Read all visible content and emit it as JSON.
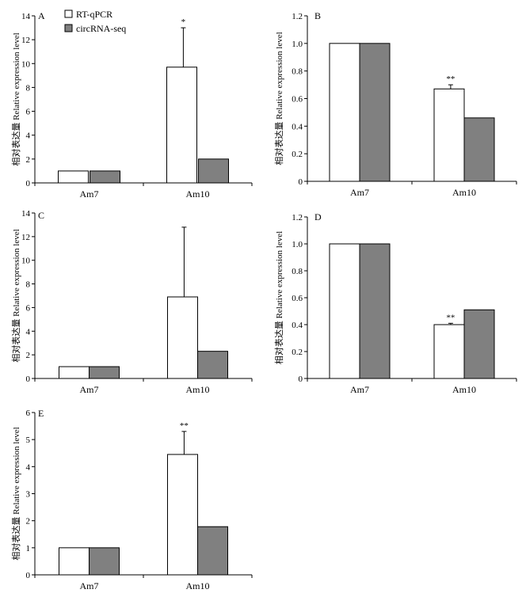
{
  "legend": [
    {
      "label": "RT-qPCR",
      "color": "#ffffff"
    },
    {
      "label": "circRNA-seq",
      "color": "#808080"
    }
  ],
  "chart_data": [
    {
      "type": "bar",
      "letter": "A",
      "ylabel": "相对表达量 Relative expression level",
      "categories": [
        "Am7",
        "Am10"
      ],
      "ylim": [
        0,
        14
      ],
      "yticks": [
        0,
        2,
        4,
        6,
        8,
        10,
        12,
        14
      ],
      "series": [
        {
          "name": "RT-qPCR",
          "values": [
            1.0,
            9.7
          ],
          "errors": [
            0,
            3.3
          ],
          "stars": [
            "",
            "*"
          ]
        },
        {
          "name": "circRNA-seq",
          "values": [
            1.0,
            2.0
          ]
        }
      ]
    },
    {
      "type": "bar",
      "letter": "B",
      "ylabel": "相对表达量 Relative expression level",
      "categories": [
        "Am7",
        "Am10"
      ],
      "ylim": [
        0,
        1.2
      ],
      "yticks": [
        "0",
        "0.2",
        "0.4",
        "0.6",
        "0.8",
        "1.0",
        "1.2"
      ],
      "series": [
        {
          "name": "RT-qPCR",
          "values": [
            1.0,
            0.67
          ],
          "errors": [
            0,
            0.03
          ],
          "stars": [
            "",
            "**"
          ]
        },
        {
          "name": "circRNA-seq",
          "values": [
            1.0,
            0.46
          ]
        }
      ]
    },
    {
      "type": "bar",
      "letter": "C",
      "ylabel": "相对表达量 Relative expression level",
      "categories": [
        "Am7",
        "Am10"
      ],
      "ylim": [
        0,
        14
      ],
      "yticks": [
        0,
        2,
        4,
        6,
        8,
        10,
        12,
        14
      ],
      "series": [
        {
          "name": "RT-qPCR",
          "values": [
            1.0,
            6.9
          ],
          "errors": [
            0,
            5.9
          ],
          "stars": [
            "",
            ""
          ]
        },
        {
          "name": "circRNA-seq",
          "values": [
            1.0,
            2.3
          ]
        }
      ]
    },
    {
      "type": "bar",
      "letter": "D",
      "ylabel": "相对表达量 Relative expression level",
      "categories": [
        "Am7",
        "Am10"
      ],
      "ylim": [
        0,
        1.2
      ],
      "yticks": [
        "0",
        "0.2",
        "0.4",
        "0.6",
        "0.8",
        "1.0",
        "1.2"
      ],
      "series": [
        {
          "name": "RT-qPCR",
          "values": [
            1.0,
            0.4
          ],
          "errors": [
            0,
            0.01
          ],
          "stars": [
            "",
            "**"
          ]
        },
        {
          "name": "circRNA-seq",
          "values": [
            1.0,
            0.51
          ]
        }
      ]
    },
    {
      "type": "bar",
      "letter": "E",
      "ylabel": "相对表达量 Relative expression level",
      "categories": [
        "Am7",
        "Am10"
      ],
      "ylim": [
        0,
        6
      ],
      "yticks": [
        0,
        1,
        2,
        3,
        4,
        5,
        6
      ],
      "series": [
        {
          "name": "RT-qPCR",
          "values": [
            1.0,
            4.45
          ],
          "errors": [
            0,
            0.85
          ],
          "stars": [
            "",
            "**"
          ]
        },
        {
          "name": "circRNA-seq",
          "values": [
            1.0,
            1.78
          ]
        }
      ]
    }
  ]
}
